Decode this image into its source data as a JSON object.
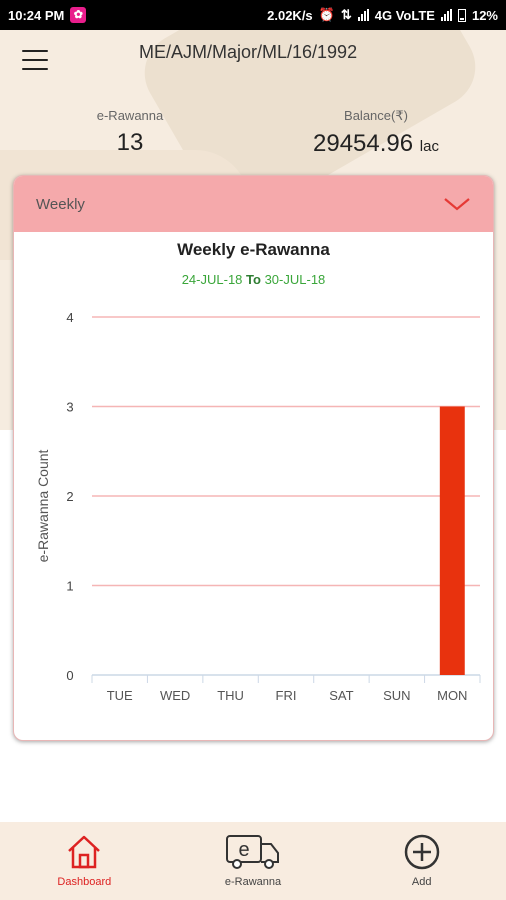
{
  "status_bar": {
    "time": "10:24 PM",
    "speed": "2.02K/s",
    "network": "4G VoLTE",
    "battery": "12%"
  },
  "header": {
    "title": "ME/AJM/Major/ML/16/1992"
  },
  "stats": {
    "erawanna": {
      "label": "e-Rawanna",
      "value": "13"
    },
    "balance": {
      "label": "Balance(₹)",
      "value": "29454.96",
      "unit": "lac"
    }
  },
  "card": {
    "dropdown_label": "Weekly",
    "date_from": "24-JUL-18",
    "date_sep": "To",
    "date_to": "30-JUL-18"
  },
  "chart_data": {
    "type": "bar",
    "title": "Weekly e-Rawanna",
    "xlabel": "",
    "ylabel": "e-Rawanna Count",
    "categories": [
      "TUE",
      "WED",
      "THU",
      "FRI",
      "SAT",
      "SUN",
      "MON"
    ],
    "values": [
      0,
      0,
      0,
      0,
      0,
      0,
      3
    ],
    "ylim": [
      0,
      4
    ],
    "yticks": [
      0,
      1,
      2,
      3,
      4
    ],
    "bar_color": "#e8320e",
    "grid_color": "#f5b5b5",
    "grid": true
  },
  "bottom_nav": [
    {
      "label": "Dashboard",
      "icon": "home-icon",
      "active": true
    },
    {
      "label": "e-Rawanna",
      "icon": "truck-icon",
      "active": false
    },
    {
      "label": "Add",
      "icon": "add-circle-icon",
      "active": false
    }
  ],
  "colors": {
    "accent": "#d22222",
    "card_header": "#f5a9ab"
  }
}
